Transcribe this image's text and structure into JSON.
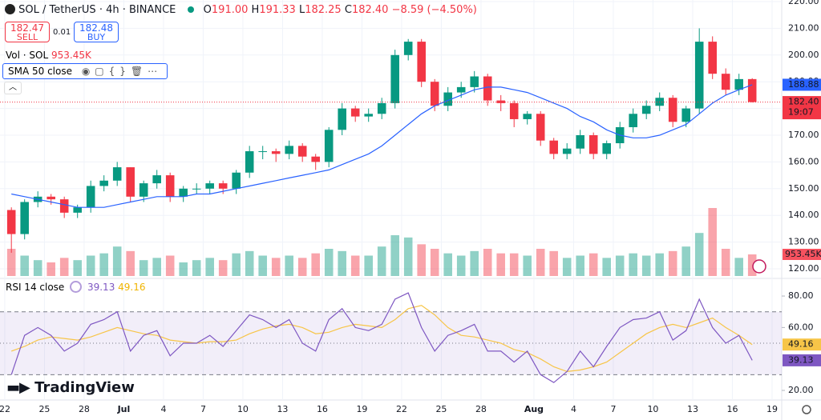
{
  "header": {
    "symbol": "SOL / TetherUS · 4h · BINANCE",
    "ohlc": [
      {
        "key": "O",
        "value": "191.00"
      },
      {
        "key": "H",
        "value": "191.33"
      },
      {
        "key": "L",
        "value": "182.25"
      },
      {
        "key": "C",
        "value": "182.40"
      }
    ],
    "change": "−8.59 (−4.50%)"
  },
  "trade": {
    "sell_price": "182.47",
    "sell": "SELL",
    "spread": "0.01",
    "buy_price": "182.48",
    "buy": "BUY"
  },
  "volume_legend": {
    "label": "Vol · SOL",
    "value": "953.45K"
  },
  "rsi_legend": {
    "value": "39.13",
    "ma": "49.16"
  },
  "countdown": "19:07",
  "logo": "TradingView",
  "chart_data": {
    "type": "candlestick",
    "x": [
      0.5,
      1.5,
      2.5,
      3.5,
      4.5,
      5.5,
      6.5,
      7.5,
      8.5,
      9.5,
      10.5,
      11.5,
      12.5,
      13.5,
      14.5,
      15.5,
      16.5,
      17.5,
      18.5,
      19.5,
      20.5,
      21.5,
      22.5,
      23.5,
      24.5,
      25.5,
      26.5,
      27.5,
      28.5,
      29.5,
      30.5,
      31.5,
      32.5,
      33.5,
      34.5,
      35.5,
      36.5,
      37.5,
      38.5,
      39.5,
      40.5,
      41.5,
      42.5,
      43.5,
      44.5,
      45.5,
      46.5,
      47.5,
      48.5,
      49.5,
      50.5,
      51.5,
      52.5,
      53.5,
      54.5,
      55.5,
      56.5
    ],
    "open": [
      142,
      133,
      145,
      147,
      146,
      141,
      143,
      151,
      153,
      158,
      147,
      152,
      155,
      147,
      150,
      150,
      152,
      150,
      156,
      164,
      164,
      163,
      166,
      162,
      160,
      172,
      180,
      177,
      178,
      182,
      200,
      205,
      190,
      181,
      186,
      188,
      192,
      183,
      182,
      176,
      178,
      168,
      163,
      165,
      170,
      163,
      167,
      173,
      178,
      181,
      184,
      175,
      180,
      205,
      193,
      187,
      191
    ],
    "high": [
      143,
      146,
      149,
      148,
      147,
      144,
      153,
      155,
      160,
      158,
      153,
      157,
      156,
      151,
      152,
      153,
      153,
      157,
      166,
      166,
      165,
      168,
      167,
      163,
      173,
      182,
      181,
      180,
      184,
      202,
      206,
      206,
      191,
      188,
      190,
      194,
      193,
      185,
      183,
      179,
      179,
      169,
      167,
      172,
      171,
      168,
      175,
      180,
      183,
      186,
      185,
      181,
      210,
      207,
      195,
      193,
      191.33
    ],
    "low": [
      126,
      131,
      143,
      144,
      139,
      139,
      141,
      149,
      151,
      145,
      145,
      150,
      145,
      145,
      148,
      148,
      148,
      148,
      154,
      161,
      160,
      161,
      160,
      157,
      158,
      170,
      175,
      175,
      176,
      180,
      198,
      188,
      179,
      179,
      184,
      186,
      181,
      179,
      173,
      174,
      166,
      161,
      161,
      163,
      161,
      161,
      165,
      171,
      176,
      179,
      173,
      173,
      178,
      191,
      185,
      185,
      182.25
    ],
    "close": [
      133,
      145,
      147,
      146,
      141,
      143,
      151,
      153,
      158,
      147,
      152,
      155,
      147,
      150,
      150,
      152,
      150,
      156,
      164,
      164,
      163,
      166,
      162,
      160,
      172,
      180,
      177,
      178,
      182,
      200,
      205,
      190,
      181,
      186,
      188,
      192,
      183,
      182,
      176,
      178,
      168,
      163,
      165,
      170,
      163,
      167,
      173,
      178,
      181,
      184,
      175,
      180,
      205,
      193,
      187,
      191,
      182.4
    ],
    "volume": [
      1200,
      900,
      700,
      600,
      800,
      700,
      900,
      1000,
      1300,
      1100,
      700,
      800,
      900,
      600,
      700,
      800,
      700,
      1000,
      1100,
      900,
      800,
      900,
      800,
      1000,
      1200,
      1100,
      900,
      900,
      1300,
      1800,
      1700,
      1400,
      1200,
      1000,
      900,
      1100,
      1200,
      1000,
      1000,
      900,
      1200,
      1100,
      800,
      900,
      1000,
      800,
      900,
      1000,
      900,
      1000,
      1100,
      1300,
      1900,
      3000,
      1200,
      800,
      953.45
    ],
    "up_color": "#089981",
    "down_color": "#f23645",
    "sma": {
      "name": "SMA 50 close",
      "color": "#2962ff",
      "values": [
        148,
        147,
        146,
        145,
        144,
        143,
        143,
        143,
        144,
        145,
        146,
        147,
        147,
        147,
        148,
        148,
        149,
        150,
        151,
        152,
        153,
        154,
        155,
        156,
        157,
        159,
        161,
        163,
        166,
        170,
        174,
        178,
        181,
        183,
        185,
        187,
        188,
        188,
        187,
        186,
        184,
        182,
        180,
        177,
        175,
        172,
        170,
        169,
        169,
        170,
        172,
        174,
        178,
        182,
        185,
        187,
        188.88
      ]
    },
    "rsi": {
      "name": "RSI 14 close",
      "color": "#7e57c2",
      "values": [
        30,
        55,
        60,
        55,
        45,
        50,
        62,
        65,
        70,
        45,
        55,
        58,
        42,
        50,
        50,
        55,
        48,
        58,
        68,
        65,
        60,
        65,
        50,
        45,
        65,
        72,
        60,
        58,
        62,
        78,
        82,
        60,
        45,
        55,
        58,
        62,
        45,
        45,
        38,
        45,
        30,
        25,
        32,
        45,
        35,
        48,
        60,
        65,
        66,
        70,
        52,
        58,
        78,
        60,
        50,
        55,
        39.13
      ],
      "ma_color": "#f7c548",
      "ma": [
        45,
        48,
        52,
        54,
        53,
        52,
        54,
        57,
        60,
        58,
        56,
        55,
        52,
        51,
        50,
        51,
        51,
        52,
        56,
        59,
        61,
        62,
        60,
        56,
        57,
        60,
        62,
        61,
        60,
        65,
        72,
        74,
        68,
        60,
        55,
        54,
        52,
        50,
        46,
        44,
        40,
        35,
        32,
        33,
        35,
        38,
        44,
        50,
        56,
        60,
        62,
        60,
        63,
        66,
        60,
        55,
        49.16
      ],
      "band": [
        70,
        50,
        30
      ],
      "ylim": [
        13.9,
        90.2
      ],
      "yticks": [
        {
          "value": 80,
          "label": "80.00"
        },
        {
          "value": 60,
          "label": "60.00"
        },
        {
          "value": 20,
          "label": "20.00"
        }
      ]
    },
    "xlim": [
      -0.36,
      58.73
    ],
    "xticks": [
      {
        "value": 0,
        "label": "22"
      },
      {
        "value": 3,
        "label": "25"
      },
      {
        "value": 6,
        "label": "28"
      },
      {
        "value": 9,
        "label": "Jul"
      },
      {
        "value": 12,
        "label": "4"
      },
      {
        "value": 15,
        "label": "7"
      },
      {
        "value": 18,
        "label": "10"
      },
      {
        "value": 21,
        "label": "13"
      },
      {
        "value": 24,
        "label": "16"
      },
      {
        "value": 27,
        "label": "19"
      },
      {
        "value": 30,
        "label": "22"
      },
      {
        "value": 33,
        "label": "25"
      },
      {
        "value": 36,
        "label": "28"
      },
      {
        "value": 40,
        "label": "Aug"
      },
      {
        "value": 43,
        "label": "4"
      },
      {
        "value": 46,
        "label": "7"
      },
      {
        "value": 49,
        "label": "10"
      },
      {
        "value": 52,
        "label": "13"
      },
      {
        "value": 55,
        "label": "16"
      },
      {
        "value": 58,
        "label": "19"
      }
    ],
    "ylim": [
      118.8,
      220.6
    ],
    "yticks": [
      {
        "value": 120,
        "label": "120.00"
      },
      {
        "value": 130,
        "label": "130.00"
      },
      {
        "value": 140,
        "label": "140.00"
      },
      {
        "value": 150,
        "label": "150.00"
      },
      {
        "value": 160,
        "label": "160.00"
      },
      {
        "value": 170,
        "label": "170.00"
      },
      {
        "value": 180,
        "label": "180.00"
      },
      {
        "value": 190,
        "label": "190.00"
      },
      {
        "value": 200,
        "label": "200.00"
      },
      {
        "value": 210,
        "label": "210.00"
      },
      {
        "value": 220,
        "label": "220.00"
      }
    ],
    "vlim": [
      0,
      12180
    ],
    "price_labels": [
      {
        "value": 188.88,
        "label": "188.88"
      },
      {
        "value": 182.4,
        "label": "182.40"
      }
    ]
  }
}
